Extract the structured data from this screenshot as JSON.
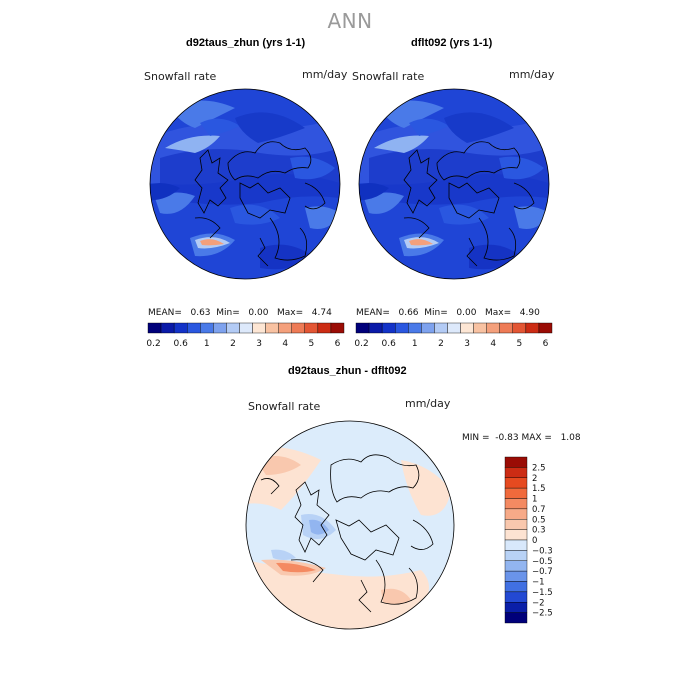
{
  "title": "ANN",
  "colors": {
    "ocean_base": "#1f45d6",
    "land_outline": "#000000",
    "diff_base": "#dcecfb",
    "diff_pos": "#fde3d2"
  },
  "chart_data": [
    {
      "type": "heatmap",
      "projection": "north-polar-stereographic",
      "title": "d92taus_zhun (yrs 1-1)",
      "variable": "Snowfall rate",
      "units": "mm/day",
      "stats": {
        "mean_label": "MEAN=",
        "mean": "0.63",
        "min_label": "Min=",
        "min": "0.00",
        "max_label": "Max=",
        "max": "4.74"
      },
      "colorbar": {
        "ticks": [
          "0.2",
          "0.6",
          "1",
          "2",
          "3",
          "4",
          "5",
          "6"
        ],
        "colors": [
          "#00007a",
          "#0a1aa8",
          "#1333c8",
          "#2a57e0",
          "#4a7ae8",
          "#7ea2ee",
          "#b3cbf5",
          "#dde9fb",
          "#fde6d4",
          "#f8c2a2",
          "#f4a07c",
          "#ee7b56",
          "#e35634",
          "#cc2c14",
          "#9a0c05"
        ]
      }
    },
    {
      "type": "heatmap",
      "projection": "north-polar-stereographic",
      "title": "dflt092 (yrs 1-1)",
      "variable": "Snowfall rate",
      "units": "mm/day",
      "stats": {
        "mean_label": "MEAN=",
        "mean": "0.66",
        "min_label": "Min=",
        "min": "0.00",
        "max_label": "Max=",
        "max": "4.90"
      },
      "colorbar": {
        "ticks": [
          "0.2",
          "0.6",
          "1",
          "2",
          "3",
          "4",
          "5",
          "6"
        ],
        "colors": [
          "#00007a",
          "#0a1aa8",
          "#1333c8",
          "#2a57e0",
          "#4a7ae8",
          "#7ea2ee",
          "#b3cbf5",
          "#dde9fb",
          "#fde6d4",
          "#f8c2a2",
          "#f4a07c",
          "#ee7b56",
          "#e35634",
          "#cc2c14",
          "#9a0c05"
        ]
      }
    },
    {
      "type": "heatmap",
      "projection": "north-polar-stereographic",
      "title": "d92taus_zhun - dflt092",
      "variable": "Snowfall rate",
      "units": "mm/day",
      "stats": {
        "min_label": "MIN =",
        "min": "-0.83",
        "max_label": "MAX =",
        "max": "1.08"
      },
      "colorbar": {
        "ticks": [
          "2.5",
          "2",
          "1.5",
          "1",
          "0.7",
          "0.5",
          "0.3",
          "0",
          "-0.3",
          "-0.5",
          "-0.7",
          "-1",
          "-1.5",
          "-2",
          "-2.5"
        ],
        "colors": [
          "#9a0c05",
          "#cc2c14",
          "#e64a20",
          "#f06a3c",
          "#f48a62",
          "#f7aa88",
          "#f9c8ae",
          "#fde3d2",
          "#d8e8fb",
          "#b8d2f6",
          "#92b5f0",
          "#6a94ea",
          "#4170e2",
          "#2349d3",
          "#0a1fa8",
          "#00007a"
        ]
      }
    }
  ]
}
